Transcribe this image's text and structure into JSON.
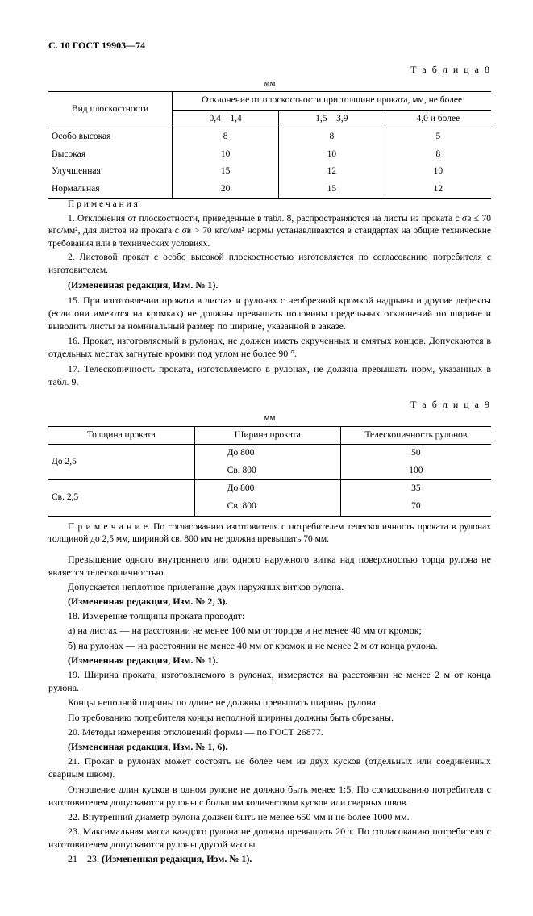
{
  "header": "С. 10 ГОСТ 19903—74",
  "table8": {
    "label": "Т а б л и ц а  8",
    "unit": "мм",
    "col_flatness": "Вид плоскостности",
    "col_group": "Отклонение от плоскостности при толщине проката, мм, не более",
    "sub1": "0,4—1,4",
    "sub2": "1,5—3,9",
    "sub3": "4,0 и более",
    "rows": [
      {
        "name": "Особо высокая",
        "a": "8",
        "b": "8",
        "c": "5"
      },
      {
        "name": "Высокая",
        "a": "10",
        "b": "10",
        "c": "8"
      },
      {
        "name": "Улучшенная",
        "a": "15",
        "b": "12",
        "c": "10"
      },
      {
        "name": "Нормальная",
        "a": "20",
        "b": "15",
        "c": "12"
      }
    ]
  },
  "notes8_head": "П р и м е ч а н и я:",
  "notes8_1": "1. Отклонения от плоскостности, приведенные в табл. 8, распространяются на листы из проката с σв ≤ 70 кгс/мм², для листов из проката с σв > 70 кгс/мм² нормы устанавливаются в стандартах на общие технические требования или в технических условиях.",
  "notes8_2": "2. Листовой прокат с особо высокой плоскостностью изготовляется по согласованию потребителя с изготовителем.",
  "change1": "(Измененная редакция, Изм. № 1).",
  "p15": "15. При изготовлении проката в листах и рулонах с необрезной кромкой надрывы и другие дефекты (если они имеются на кромках) не должны превышать половины предельных отклонений по ширине и выводить листы за номинальный размер по ширине, указанной в заказе.",
  "p16": "16. Прокат, изготовляемый в рулонах, не должен иметь скрученных и смятых концов. Допускаются в отдельных местах загнутые кромки под углом не более 90 °.",
  "p17": "17. Телескопичность проката, изготовляемого в рулонах, не должна превышать норм, указанных в табл. 9.",
  "table9": {
    "label": "Т а б л и ц а  9",
    "unit": "мм",
    "col_thick": "Толщина проката",
    "col_width": "Ширина проката",
    "col_tele": "Телескопичность рулонов",
    "rows": [
      {
        "t": "До 2,5",
        "w1": "До  800",
        "v1": "50",
        "w2": "Св. 800",
        "v2": "100"
      },
      {
        "t": "Св. 2,5",
        "w1": "До  800",
        "v1": "35",
        "w2": "Св. 800",
        "v2": "70"
      }
    ]
  },
  "note9": "П р и м е ч а н и е.  По согласованию изготовителя с потребителем телескопичность проката в рулонах толщиной до 2,5 мм, шириной св. 800 мм не должна превышать 70 мм.",
  "p_tele1": "Превышение одного внутреннего или одного наружного витка над поверхностью торца рулона не является телескопичностью.",
  "p_tele2": "Допускается неплотное прилегание двух наружных витков рулона.",
  "change23": "(Измененная редакция, Изм. № 2, 3).",
  "p18": "18. Измерение толщины проката проводят:",
  "p18a": "а) на листах — на расстоянии не менее 100 мм от торцов и не менее 40 мм от кромок;",
  "p18b": "б) на рулонах — на расстоянии не менее 40 мм от кромок и не менее 2 м от конца рулона.",
  "change1b": "(Измененная редакция, Изм. № 1).",
  "p19": "19. Ширина проката, изготовляемого в рулонах, измеряется на расстоянии не менее 2 м от конца рулона.",
  "p19a": "Концы неполной ширины по длине не должны превышать ширины рулона.",
  "p19b": "По требованию потребителя концы неполной ширины должны быть обрезаны.",
  "p20": "20. Методы измерения отклонений формы — по ГОСТ 26877.",
  "change16": "(Измененная редакция, Изм. № 1, 6).",
  "p21": "21. Прокат в рулонах может состоять не более чем из двух кусков (отдельных или соединенных сварным швом).",
  "p21a": "Отношение длин кусков в одном рулоне не должно быть менее 1:5. По согласованию потребителя с изготовителем допускаются рулоны с большим количеством кусков или сварных швов.",
  "p22": "22. Внутренний диаметр рулона должен быть не менее 650 мм и не более 1000 мм.",
  "p23": "23. Максимальная масса каждого рулона не должна превышать 20 т. По согласованию потребителя с изготовителем допускаются рулоны другой массы.",
  "p21_23": "21—23. (Измененная редакция, Изм. № 1)."
}
